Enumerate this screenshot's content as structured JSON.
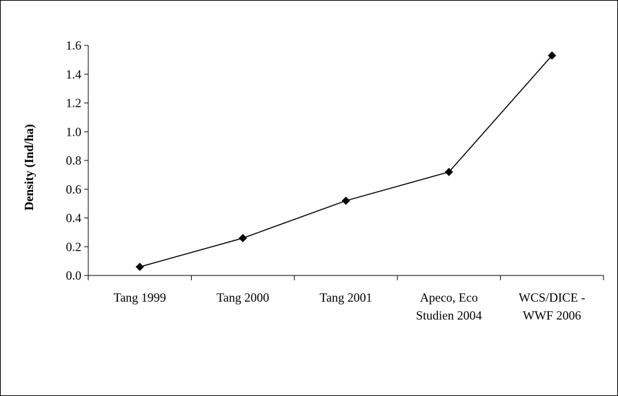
{
  "chart_data": {
    "type": "line",
    "title": "",
    "xlabel": "",
    "ylabel": "Density (Ind/ha)",
    "categories": [
      [
        "Tang 1999"
      ],
      [
        "Tang 2000"
      ],
      [
        "Tang 2001"
      ],
      [
        "Apeco, Eco",
        "Studien 2004"
      ],
      [
        "WCS/DICE -",
        "WWF 2006"
      ]
    ],
    "series": [
      {
        "values": [
          0.06,
          0.26,
          0.52,
          0.72,
          1.53
        ],
        "color": "#000000",
        "marker": "diamond"
      }
    ],
    "ylim": [
      0,
      1.6
    ],
    "yticks": [
      "0.0",
      "0.2",
      "0.4",
      "0.6",
      "0.8",
      "1.0",
      "1.2",
      "1.4",
      "1.6"
    ],
    "grid": false,
    "legend": "none"
  }
}
